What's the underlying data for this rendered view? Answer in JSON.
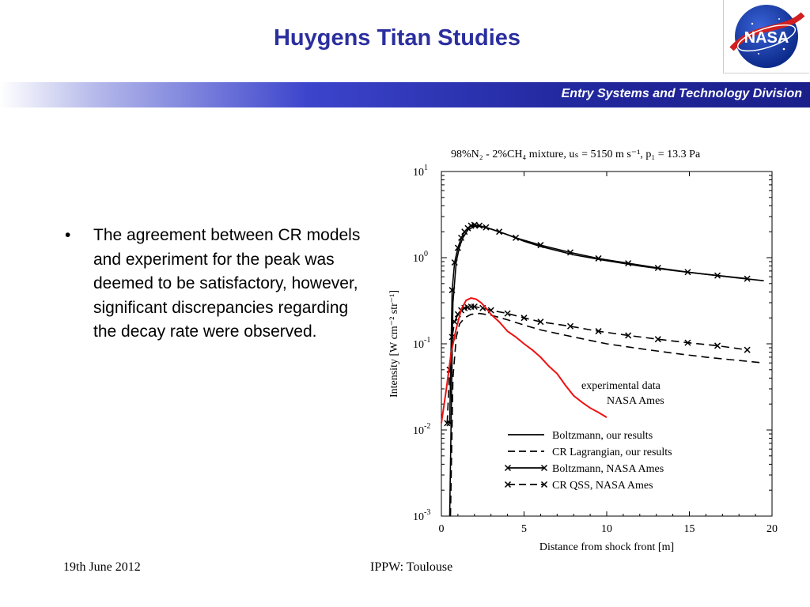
{
  "slide": {
    "title": "Huygens Titan Studies",
    "banner_text": "Entry Systems and Technology Division",
    "logo_text": "NASA",
    "bullets": [
      "The agreement between CR models and experiment for the peak was deemed to be satisfactory, however, significant discrepancies regarding the decay rate were observed."
    ],
    "footer_left": "19th June 2012",
    "footer_center": "IPPW: Toulouse"
  },
  "colors": {
    "title": "#2b2f9e",
    "banner_dark": "#1a1f8a",
    "experimental": "#ee1111",
    "lines": "#000000"
  },
  "chart_data": {
    "type": "line",
    "title": "98%N₂ - 2%CH₄ mixture,  uₛ = 5150 m s⁻¹, p₁ = 13.3 Pa",
    "xlabel": "Distance from shock front [m]",
    "ylabel": "Intensity [W cm⁻² str⁻¹]",
    "xlim": [
      0,
      20
    ],
    "ylim": [
      0.001,
      10
    ],
    "yscale": "log",
    "x_ticks": [
      0,
      5,
      10,
      15,
      20
    ],
    "y_ticks": [
      0.001,
      0.01,
      0.1,
      1,
      10
    ],
    "y_tick_labels": [
      {
        "base": "10",
        "exp": "-3"
      },
      {
        "base": "10",
        "exp": "-2"
      },
      {
        "base": "10",
        "exp": "-1"
      },
      {
        "base": "10",
        "exp": "0"
      },
      {
        "base": "10",
        "exp": "1"
      }
    ],
    "annotation": [
      "experimental data",
      "NASA Ames"
    ],
    "legend_position": "lower-right",
    "series": [
      {
        "name": "Boltzmann, our results",
        "style": "solid",
        "marker": "none",
        "x": [
          0.5,
          0.7,
          0.9,
          1.1,
          1.3,
          1.6,
          2.0,
          2.4,
          3.0,
          4.0,
          5.0,
          6.0,
          8.0,
          10.0,
          12.0,
          14.0,
          16.0,
          18.0,
          19.5
        ],
        "y": [
          0.001,
          0.3,
          0.9,
          1.35,
          1.7,
          2.1,
          2.3,
          2.3,
          2.15,
          1.85,
          1.55,
          1.35,
          1.08,
          0.92,
          0.8,
          0.71,
          0.64,
          0.58,
          0.54
        ]
      },
      {
        "name": "CR Lagrangian, our results",
        "style": "dashed",
        "marker": "none",
        "x": [
          0.55,
          0.7,
          0.9,
          1.1,
          1.4,
          1.8,
          2.3,
          3.0,
          4.0,
          5.0,
          6.0,
          8.0,
          10.0,
          12.0,
          14.0,
          16.0,
          18.0,
          19.5
        ],
        "y": [
          0.001,
          0.04,
          0.12,
          0.17,
          0.2,
          0.22,
          0.225,
          0.215,
          0.19,
          0.165,
          0.145,
          0.12,
          0.1,
          0.088,
          0.078,
          0.07,
          0.064,
          0.06
        ]
      },
      {
        "name": "Boltzmann, NASA Ames",
        "style": "solid",
        "marker": "x",
        "x": [
          0.5,
          0.65,
          0.8,
          1.0,
          1.2,
          1.4,
          1.6,
          1.8,
          2.0,
          2.3,
          2.7,
          3.5,
          4.5,
          6.0,
          7.8,
          9.5,
          11.3,
          13.1,
          14.9,
          16.7,
          18.5
        ],
        "y": [
          0.012,
          0.42,
          0.88,
          1.3,
          1.7,
          2.0,
          2.2,
          2.35,
          2.4,
          2.35,
          2.25,
          2.0,
          1.7,
          1.4,
          1.15,
          0.98,
          0.86,
          0.76,
          0.68,
          0.62,
          0.57
        ]
      },
      {
        "name": "CR QSS, NASA Ames",
        "style": "dashed",
        "marker": "x",
        "x": [
          0.35,
          0.5,
          0.65,
          0.8,
          1.0,
          1.2,
          1.4,
          1.6,
          1.8,
          2.0,
          2.5,
          3.0,
          4.0,
          5.0,
          6.0,
          7.8,
          9.5,
          11.3,
          13.1,
          14.9,
          16.7,
          18.5
        ],
        "y": [
          0.012,
          0.05,
          0.12,
          0.18,
          0.22,
          0.245,
          0.26,
          0.265,
          0.27,
          0.27,
          0.26,
          0.245,
          0.225,
          0.2,
          0.18,
          0.16,
          0.14,
          0.125,
          0.113,
          0.103,
          0.095,
          0.085
        ]
      },
      {
        "name": "experimental data NASA Ames",
        "style": "solid",
        "marker": "none",
        "x": [
          0.0,
          0.3,
          0.6,
          0.9,
          1.2,
          1.5,
          1.8,
          2.1,
          2.4,
          2.7,
          3.0,
          3.5,
          4.0,
          4.5,
          5.0,
          5.5,
          6.0,
          6.5,
          7.0,
          7.5,
          8.0,
          8.5,
          9.0,
          9.5,
          10.0
        ],
        "y": [
          0.012,
          0.03,
          0.08,
          0.15,
          0.25,
          0.32,
          0.34,
          0.33,
          0.3,
          0.26,
          0.22,
          0.18,
          0.14,
          0.12,
          0.1,
          0.085,
          0.07,
          0.055,
          0.045,
          0.033,
          0.025,
          0.021,
          0.018,
          0.016,
          0.014
        ]
      }
    ]
  }
}
